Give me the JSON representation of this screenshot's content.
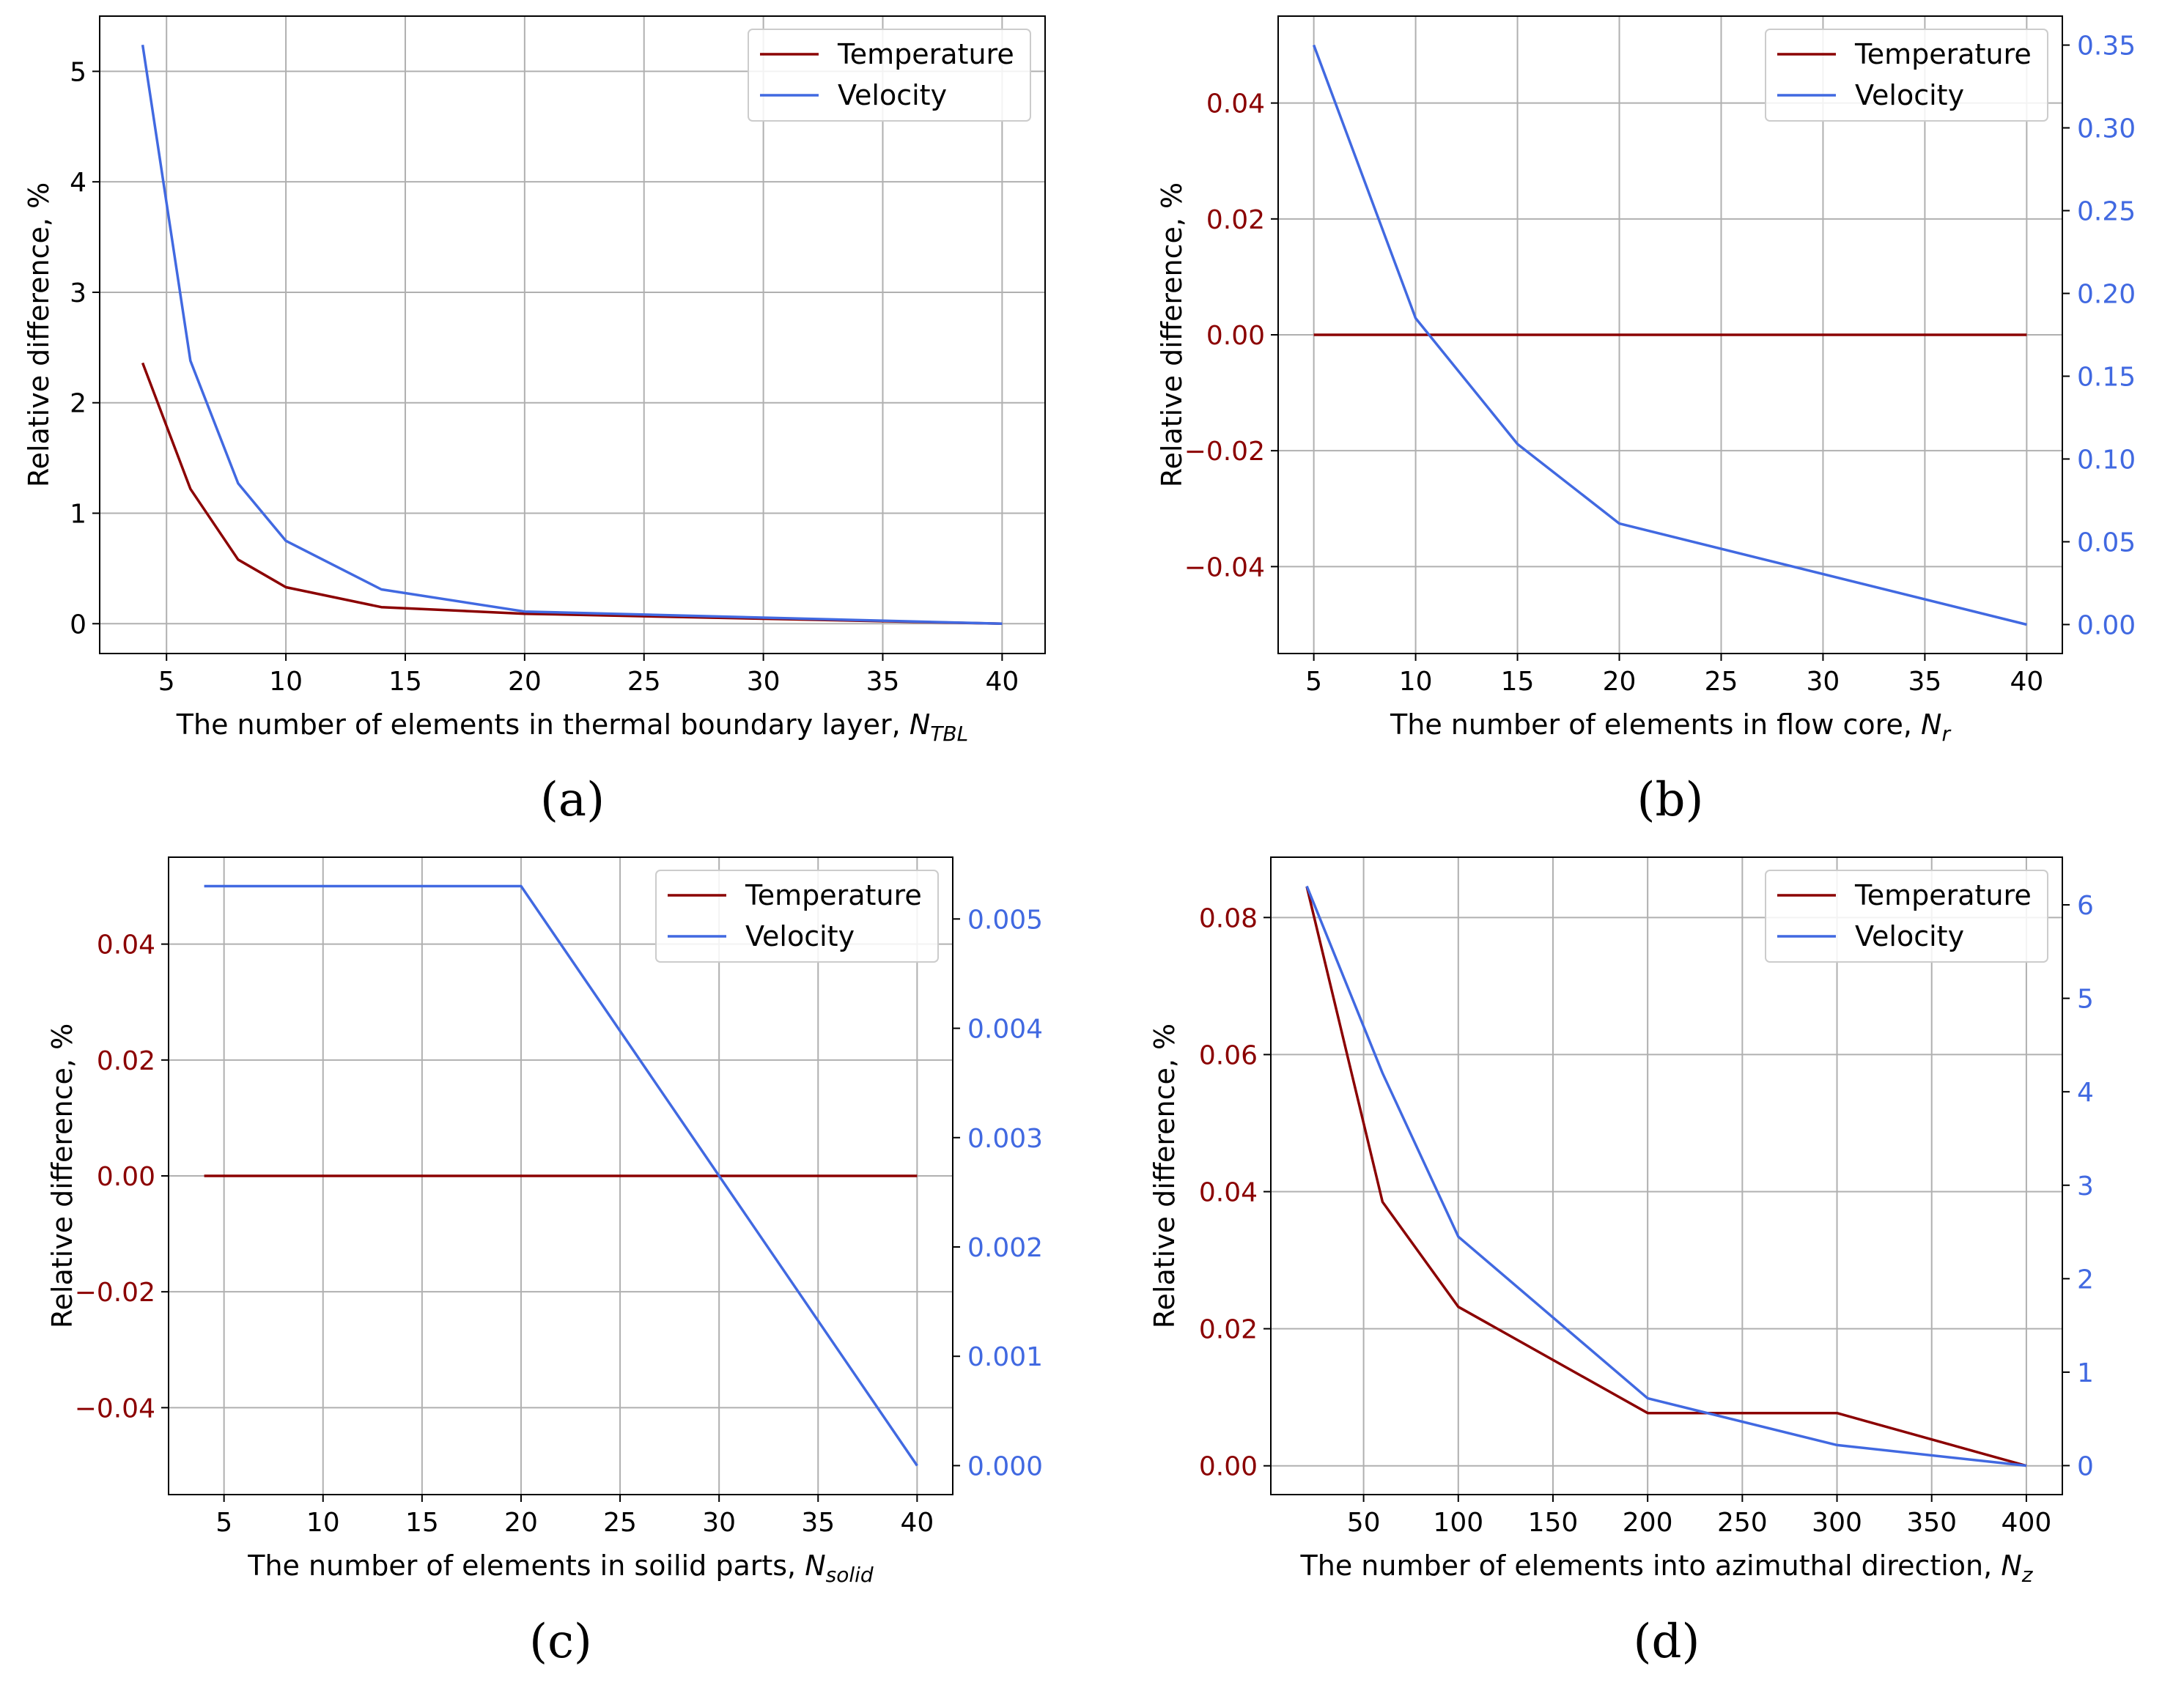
{
  "colors": {
    "temperature": "#8b0000",
    "velocity": "#4169e1",
    "grid": "#b0b0b0",
    "axis": "#000000"
  },
  "chart_data": [
    {
      "id": "a",
      "type": "line",
      "panel_label": "(a)",
      "xlabel_main": "The number of elements in thermal boundary layer, ",
      "xlabel_sym": "N",
      "xlabel_sub": "TBL",
      "ylabel": "Relative difference, %",
      "xlim": [
        2.2,
        41.8
      ],
      "xticks": [
        5,
        10,
        15,
        20,
        25,
        30,
        35,
        40
      ],
      "ylim": [
        -0.27,
        5.5
      ],
      "yticks": [
        0,
        1,
        2,
        3,
        4,
        5
      ],
      "y_tick_labels": [
        "0",
        "1",
        "2",
        "3",
        "4",
        "5"
      ],
      "left_axis_colored": false,
      "legend_position": "top-right",
      "series": [
        {
          "name": "Temperature",
          "axis": "left",
          "x": [
            4,
            6,
            8,
            10,
            14,
            20,
            40
          ],
          "y": [
            2.36,
            1.22,
            0.58,
            0.33,
            0.15,
            0.09,
            0.0
          ]
        },
        {
          "name": "Velocity",
          "axis": "left",
          "x": [
            4,
            6,
            8,
            10,
            14,
            20,
            40
          ],
          "y": [
            5.24,
            2.38,
            1.27,
            0.75,
            0.31,
            0.11,
            0.0
          ]
        }
      ]
    },
    {
      "id": "b",
      "type": "line",
      "panel_label": "(b)",
      "xlabel_main": "The number of elements in flow core, ",
      "xlabel_sym": "N",
      "xlabel_sub": "r",
      "ylabel": "Relative difference, %",
      "xlim": [
        3.25,
        41.75
      ],
      "xticks": [
        5,
        10,
        15,
        20,
        25,
        30,
        35,
        40
      ],
      "ylim": [
        -0.055,
        0.055
      ],
      "yticks": [
        -0.04,
        -0.02,
        0.0,
        0.02,
        0.04
      ],
      "y_tick_labels": [
        "−0.04",
        "−0.02",
        "0.00",
        "0.02",
        "0.04"
      ],
      "left_axis_colored": true,
      "y2lim": [
        -0.0175,
        0.3675
      ],
      "y2ticks": [
        0.0,
        0.05,
        0.1,
        0.15,
        0.2,
        0.25,
        0.3,
        0.35
      ],
      "y2_tick_labels": [
        "0.00",
        "0.05",
        "0.10",
        "0.15",
        "0.20",
        "0.25",
        "0.30",
        "0.35"
      ],
      "legend_position": "top-right",
      "series": [
        {
          "name": "Temperature",
          "axis": "left",
          "x": [
            5,
            10,
            15,
            20,
            40
          ],
          "y": [
            0.0,
            0.0,
            0.0,
            0.0,
            0.0
          ]
        },
        {
          "name": "Velocity",
          "axis": "right",
          "x": [
            5,
            10,
            15,
            20,
            40
          ],
          "y": [
            0.35,
            0.185,
            0.109,
            0.061,
            0.0
          ]
        }
      ]
    },
    {
      "id": "c",
      "type": "line",
      "panel_label": "(c)",
      "xlabel_main": "The number of elements in soilid parts, ",
      "xlabel_sym": "N",
      "xlabel_sub": "solid",
      "ylabel": "Relative difference, %",
      "xlim": [
        2.2,
        41.8
      ],
      "xticks": [
        5,
        10,
        15,
        20,
        25,
        30,
        35,
        40
      ],
      "ylim": [
        -0.055,
        0.055
      ],
      "yticks": [
        -0.04,
        -0.02,
        0.0,
        0.02,
        0.04
      ],
      "y_tick_labels": [
        "−0.04",
        "−0.02",
        "0.00",
        "0.02",
        "0.04"
      ],
      "left_axis_colored": true,
      "y2lim": [
        -0.000265,
        0.005565
      ],
      "y2ticks": [
        0.0,
        0.001,
        0.002,
        0.003,
        0.004,
        0.005
      ],
      "y2_tick_labels": [
        "0.000",
        "0.001",
        "0.002",
        "0.003",
        "0.004",
        "0.005"
      ],
      "legend_position": "top-right",
      "series": [
        {
          "name": "Temperature",
          "axis": "left",
          "x": [
            4,
            20,
            30,
            40
          ],
          "y": [
            0.0,
            0.0,
            0.0,
            0.0
          ]
        },
        {
          "name": "Velocity",
          "axis": "right",
          "x": [
            4,
            20,
            30,
            40
          ],
          "y": [
            0.0053,
            0.0053,
            0.00265,
            0.0
          ]
        }
      ]
    },
    {
      "id": "d",
      "type": "line",
      "panel_label": "(d)",
      "xlabel_main": "The number of elements into azimuthal direction, ",
      "xlabel_sym": "N",
      "xlabel_sub": "z",
      "ylabel": "Relative difference, %",
      "xlim": [
        1,
        419
      ],
      "xticks": [
        50,
        100,
        150,
        200,
        250,
        300,
        350,
        400
      ],
      "ylim": [
        -0.0042,
        0.0888
      ],
      "yticks": [
        0.0,
        0.02,
        0.04,
        0.06,
        0.08
      ],
      "y_tick_labels": [
        "0.00",
        "0.02",
        "0.04",
        "0.06",
        "0.08"
      ],
      "left_axis_colored": true,
      "y2lim": [
        -0.31,
        6.51
      ],
      "y2ticks": [
        0,
        1,
        2,
        3,
        4,
        5,
        6
      ],
      "y2_tick_labels": [
        "0",
        "1",
        "2",
        "3",
        "4",
        "5",
        "6"
      ],
      "legend_position": "top-right",
      "series": [
        {
          "name": "Temperature",
          "axis": "left",
          "x": [
            20,
            60,
            100,
            200,
            300,
            400
          ],
          "y": [
            0.0845,
            0.0385,
            0.0232,
            0.0077,
            0.0077,
            0.0
          ]
        },
        {
          "name": "Velocity",
          "axis": "right",
          "x": [
            20,
            60,
            100,
            200,
            300,
            400
          ],
          "y": [
            6.2,
            4.2,
            2.45,
            0.72,
            0.22,
            0.0
          ]
        }
      ]
    }
  ]
}
